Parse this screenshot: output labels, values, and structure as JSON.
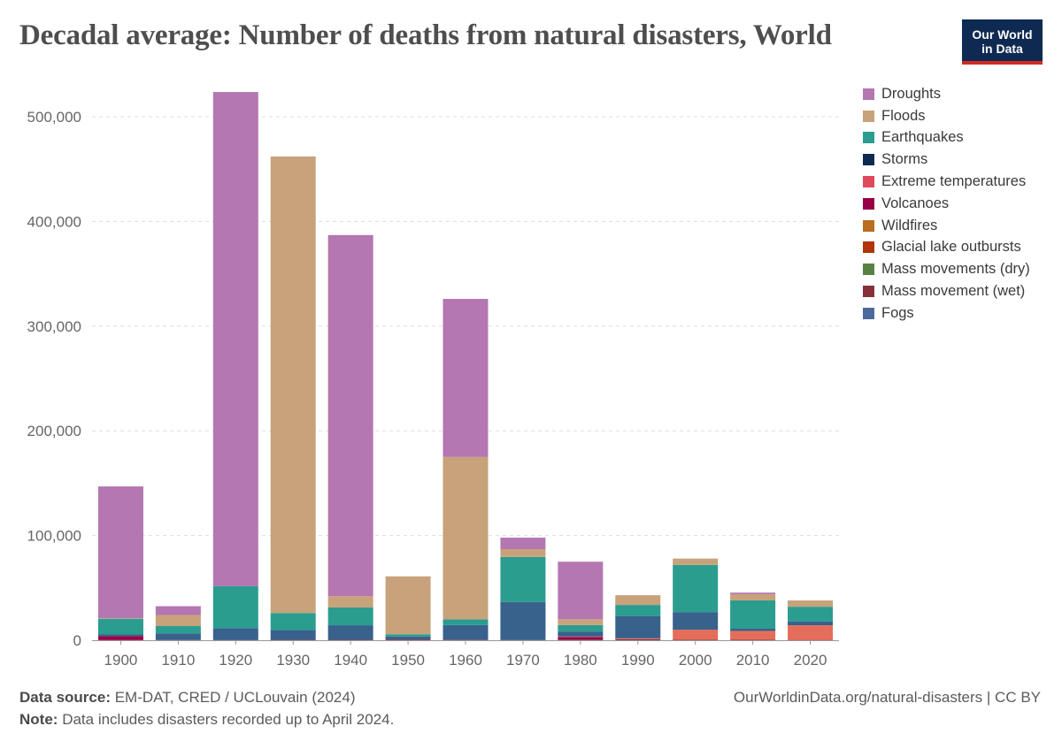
{
  "header": {
    "title": "Decadal average: Number of deaths from natural disasters, World",
    "logo_line1": "Our World",
    "logo_line2": "in Data"
  },
  "footer": {
    "source_label": "Data source:",
    "source_text": "EM-DAT, CRED / UCLouvain (2024)",
    "note_label": "Note:",
    "note_text": "Data includes disasters recorded up to April 2024.",
    "url_text": "OurWorldinData.org/natural-disasters",
    "license_text": "| CC BY"
  },
  "chart_data": {
    "type": "bar",
    "stacked": true,
    "title": "Decadal average: Number of deaths from natural disasters, World",
    "categories": [
      "1900",
      "1910",
      "1920",
      "1930",
      "1940",
      "1950",
      "1960",
      "1970",
      "1980",
      "1990",
      "2000",
      "2010",
      "2020"
    ],
    "ylim": [
      0,
      500000
    ],
    "yticks": [
      0,
      100000,
      200000,
      300000,
      400000,
      500000
    ],
    "ytick_labels": [
      "0",
      "100,000",
      "200,000",
      "300,000",
      "400,000",
      "500,000"
    ],
    "grid": true,
    "legend_position": "right",
    "series": [
      {
        "name": "Fogs",
        "color": "#4c6a9c",
        "values": [
          0,
          0,
          0,
          0,
          0,
          0,
          0,
          0,
          0,
          0,
          0,
          0,
          0
        ]
      },
      {
        "name": "Mass movement (wet)",
        "color": "#883039",
        "values": [
          300,
          100,
          0,
          300,
          400,
          400,
          300,
          200,
          600,
          900,
          600,
          400,
          300
        ]
      },
      {
        "name": "Mass movements (dry)",
        "color": "#578145",
        "values": [
          0,
          0,
          0,
          0,
          0,
          0,
          0,
          0,
          0,
          0,
          0,
          0,
          0
        ]
      },
      {
        "name": "Glacial lake outbursts",
        "color": "#b13507",
        "values": [
          0,
          0,
          0,
          0,
          0,
          0,
          0,
          0,
          0,
          0,
          0,
          0,
          0
        ]
      },
      {
        "name": "Wildfires",
        "color": "#bc8e5a",
        "values": [
          0,
          0,
          0,
          0,
          0,
          0,
          0,
          0,
          0,
          0,
          0,
          0,
          0
        ]
      },
      {
        "name": "Volcanoes",
        "color": "#970046",
        "values": [
          3700,
          100,
          200,
          100,
          100,
          300,
          200,
          0,
          2400,
          100,
          0,
          0,
          0
        ]
      },
      {
        "name": "Extreme temperatures",
        "color": "#e56e5a",
        "values": [
          0,
          0,
          0,
          0,
          0,
          0,
          0,
          0,
          500,
          800,
          9500,
          8500,
          14000
        ]
      },
      {
        "name": "Storms",
        "color": "#38618c",
        "values": [
          1500,
          6300,
          11400,
          9400,
          13800,
          2800,
          14000,
          36300,
          4800,
          21300,
          16800,
          2100,
          3700
        ]
      },
      {
        "name": "Earthquakes",
        "color": "#2a9d8f",
        "values": [
          15000,
          7000,
          40000,
          16200,
          17000,
          2200,
          5500,
          43000,
          6200,
          10600,
          45000,
          27000,
          14000
        ]
      },
      {
        "name": "Floods",
        "color": "#c8a27a",
        "values": [
          400,
          10600,
          0,
          436000,
          10700,
          55300,
          155000,
          7500,
          5500,
          9300,
          6100,
          6000,
          6000
        ]
      },
      {
        "name": "Droughts",
        "color": "#b477b1",
        "values": [
          126000,
          8400,
          472000,
          0,
          345000,
          0,
          151000,
          11000,
          55000,
          0,
          0,
          1500,
          0
        ]
      }
    ]
  },
  "legend": [
    {
      "label": "Droughts",
      "color": "#b477b1"
    },
    {
      "label": "Floods",
      "color": "#c8a27a"
    },
    {
      "label": "Earthquakes",
      "color": "#2a9d8f"
    },
    {
      "label": "Storms",
      "color": "#0f2a52"
    },
    {
      "label": "Extreme temperatures",
      "color": "#e0485c"
    },
    {
      "label": "Volcanoes",
      "color": "#970046"
    },
    {
      "label": "Wildfires",
      "color": "#b86d1f"
    },
    {
      "label": "Glacial lake outbursts",
      "color": "#b13507"
    },
    {
      "label": "Mass movements (dry)",
      "color": "#578145"
    },
    {
      "label": "Mass movement (wet)",
      "color": "#883039"
    },
    {
      "label": "Fogs",
      "color": "#4c6a9c"
    }
  ]
}
